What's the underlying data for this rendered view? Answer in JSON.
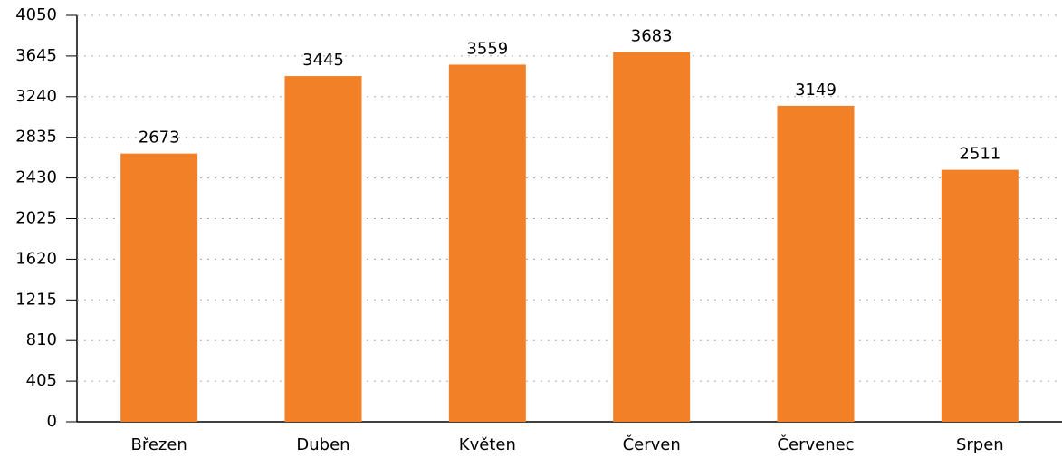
{
  "chart_data": {
    "type": "bar",
    "categories": [
      "Březen",
      "Duben",
      "Květen",
      "Červen",
      "Červenec",
      "Srpen"
    ],
    "values": [
      2673,
      3445,
      3559,
      3683,
      3149,
      2511
    ],
    "color": "#f28026",
    "ylim": [
      0,
      4050
    ],
    "yticks": [
      0,
      405,
      810,
      1215,
      1620,
      2025,
      2430,
      2835,
      3240,
      3645,
      4050
    ],
    "grid": true
  }
}
